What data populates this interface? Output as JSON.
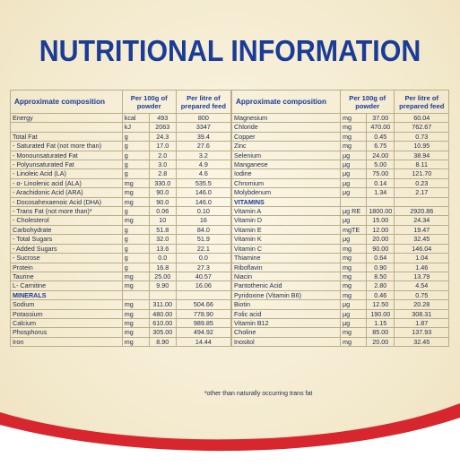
{
  "title": "NUTRITIONAL INFORMATION",
  "headers": {
    "composition": "Approximate composition",
    "per100g": "Per 100g of powder",
    "perLitre": "Per litre of prepared feed"
  },
  "left_rows": [
    {
      "name": "Energy",
      "unit": "kcal",
      "v1": "493",
      "v2": "800"
    },
    {
      "name": "",
      "unit": "kJ",
      "v1": "2063",
      "v2": "3347"
    },
    {
      "name": "Total Fat",
      "unit": "g",
      "v1": "24.3",
      "v2": "39.4"
    },
    {
      "name": "- Saturated Fat (not more than)",
      "unit": "g",
      "v1": "17.0",
      "v2": "27.6"
    },
    {
      "name": "- Monounsaturated Fat",
      "unit": "g",
      "v1": "2.0",
      "v2": "3.2"
    },
    {
      "name": "- Polyunsaturated Fat",
      "unit": "g",
      "v1": "3.0",
      "v2": "4.9"
    },
    {
      "name": "- Linoleic Acid (LA)",
      "unit": "g",
      "v1": "2.8",
      "v2": "4.6"
    },
    {
      "name": "- α- Linolenic acid (ALA)",
      "unit": "mg",
      "v1": "330.0",
      "v2": "535.5"
    },
    {
      "name": "- Arachidonic Acid (ARA)",
      "unit": "mg",
      "v1": "90.0",
      "v2": "146.0"
    },
    {
      "name": "- Docosahexaenoic Acid (DHA)",
      "unit": "mg",
      "v1": "90.0",
      "v2": "146.0"
    },
    {
      "name": "- Trans Fat (not more than)*",
      "unit": "g",
      "v1": "0.06",
      "v2": "0.10"
    },
    {
      "name": "- Cholesterol",
      "unit": "mg",
      "v1": "10",
      "v2": "16"
    },
    {
      "name": "Carbohydrate",
      "unit": "g",
      "v1": "51.8",
      "v2": "84.0"
    },
    {
      "name": "- Total Sugars",
      "unit": "g",
      "v1": "32.0",
      "v2": "51.9"
    },
    {
      "name": "- Added Sugars",
      "unit": "g",
      "v1": "13.6",
      "v2": "22.1"
    },
    {
      "name": "- Sucrose",
      "unit": "g",
      "v1": "0.0",
      "v2": "0.0"
    },
    {
      "name": "Protein",
      "unit": "g",
      "v1": "16.8",
      "v2": "27.3"
    },
    {
      "name": "Taurine",
      "unit": "mg",
      "v1": "25.00",
      "v2": "40.57"
    },
    {
      "name": "L- Carnitine",
      "unit": "mg",
      "v1": "9.90",
      "v2": "16.06"
    },
    {
      "name": "MINERALS",
      "unit": "",
      "v1": "",
      "v2": "",
      "section": true
    },
    {
      "name": "Sodium",
      "unit": "mg",
      "v1": "311.00",
      "v2": "504.66"
    },
    {
      "name": "Potassium",
      "unit": "mg",
      "v1": "480.00",
      "v2": "778.90"
    },
    {
      "name": "Calcium",
      "unit": "mg",
      "v1": "610.00",
      "v2": "989.85"
    },
    {
      "name": "Phosphorus",
      "unit": "mg",
      "v1": "305.00",
      "v2": "494.92"
    },
    {
      "name": "Iron",
      "unit": "mg",
      "v1": "8.90",
      "v2": "14.44"
    }
  ],
  "right_rows": [
    {
      "name": "Magnesium",
      "unit": "mg",
      "v1": "37.00",
      "v2": "60.04"
    },
    {
      "name": "Chloride",
      "unit": "mg",
      "v1": "470.00",
      "v2": "762.67"
    },
    {
      "name": "Copper",
      "unit": "mg",
      "v1": "0.45",
      "v2": "0.73"
    },
    {
      "name": "Zinc",
      "unit": "mg",
      "v1": "6.75",
      "v2": "10.95"
    },
    {
      "name": "Selenium",
      "unit": "μg",
      "v1": "24.00",
      "v2": "38.94"
    },
    {
      "name": "Manganese",
      "unit": "μg",
      "v1": "5.00",
      "v2": "8.11"
    },
    {
      "name": "Iodine",
      "unit": "μg",
      "v1": "75.00",
      "v2": "121.70"
    },
    {
      "name": "Chromium",
      "unit": "μg",
      "v1": "0.14",
      "v2": "0.23"
    },
    {
      "name": "Molybdenum",
      "unit": "μg",
      "v1": "1.34",
      "v2": "2.17"
    },
    {
      "name": "VITAMINS",
      "unit": "",
      "v1": "",
      "v2": "",
      "section": true
    },
    {
      "name": "Vitamin A",
      "unit": "μg RE",
      "v1": "1800.00",
      "v2": "2920.86"
    },
    {
      "name": "Vitamin D",
      "unit": "μg",
      "v1": "15.00",
      "v2": "24.34"
    },
    {
      "name": "Vitamin E",
      "unit": "mgTE",
      "v1": "12.00",
      "v2": "19.47"
    },
    {
      "name": "Vitamin K",
      "unit": "μg",
      "v1": "20.00",
      "v2": "32.45"
    },
    {
      "name": "Vitamin C",
      "unit": "mg",
      "v1": "90.00",
      "v2": "146.04"
    },
    {
      "name": "Thiamine",
      "unit": "mg",
      "v1": "0.64",
      "v2": "1.04"
    },
    {
      "name": "Riboflavin",
      "unit": "mg",
      "v1": "0.90",
      "v2": "1.46"
    },
    {
      "name": "Niacin",
      "unit": "mg",
      "v1": "8.50",
      "v2": "13.79"
    },
    {
      "name": "Pantothenic Acid",
      "unit": "mg",
      "v1": "2.80",
      "v2": "4.54"
    },
    {
      "name": "Pyridoxine (Vitamin B6)",
      "unit": "mg",
      "v1": "0.46",
      "v2": "0.75"
    },
    {
      "name": "Biotin",
      "unit": "μg",
      "v1": "12.50",
      "v2": "20.28"
    },
    {
      "name": "Folic acid",
      "unit": "μg",
      "v1": "190.00",
      "v2": "308.31"
    },
    {
      "name": "Vitamin B12",
      "unit": "μg",
      "v1": "1.15",
      "v2": "1.87"
    },
    {
      "name": "Choline",
      "unit": "mg",
      "v1": "85.00",
      "v2": "137.93"
    },
    {
      "name": "Inositol",
      "unit": "mg",
      "v1": "20.00",
      "v2": "32.45"
    }
  ],
  "footnote": "*other than naturally occurring trans fat",
  "colors": {
    "title": "#1a3c96",
    "swoosh_red": "#d7262e",
    "swoosh_cream": "#f4ebd0"
  }
}
